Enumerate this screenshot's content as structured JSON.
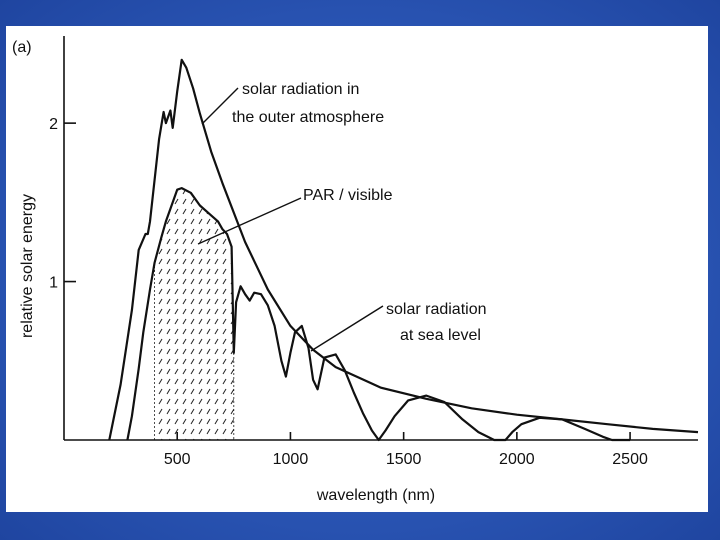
{
  "slide": {
    "background_color": "#2a55b4",
    "panel_color": "#ffffff"
  },
  "chart_data": {
    "type": "line",
    "panel_label": "(a)",
    "xlabel": "wavelength (nm)",
    "ylabel": "relative solar energy",
    "xlim": [
      0,
      2800
    ],
    "ylim": [
      0,
      2.55
    ],
    "x_ticks": [
      500,
      1000,
      1500,
      2000,
      2500
    ],
    "x_tick_labels": [
      "500",
      "1000",
      "1500",
      "2000",
      "2500"
    ],
    "y_ticks": [
      1,
      2
    ],
    "y_tick_labels": [
      "1",
      "2"
    ],
    "grid": false,
    "series": [
      {
        "annotation_lines": [
          "solar radiation in",
          "the outer atmosphere"
        ],
        "x": [
          200,
          250,
          300,
          330,
          360,
          370,
          380,
          420,
          440,
          450,
          470,
          480,
          500,
          520,
          540,
          570,
          600,
          650,
          700,
          800,
          900,
          1000,
          1100,
          1200,
          1400,
          1600,
          1800,
          2000,
          2200,
          2400,
          2600,
          2800
        ],
        "values": [
          0.0,
          0.35,
          0.82,
          1.2,
          1.3,
          1.3,
          1.38,
          1.9,
          2.07,
          2.0,
          2.08,
          1.97,
          2.2,
          2.4,
          2.35,
          2.22,
          2.06,
          1.82,
          1.62,
          1.25,
          0.95,
          0.72,
          0.57,
          0.46,
          0.33,
          0.26,
          0.2,
          0.16,
          0.13,
          0.1,
          0.07,
          0.05
        ]
      },
      {
        "annotation_lines": [
          "solar radiation",
          "at sea level"
        ],
        "x": [
          280,
          300,
          330,
          350,
          380,
          400,
          430,
          450,
          480,
          500,
          520,
          560,
          600,
          640,
          680,
          700,
          720,
          740,
          750,
          760,
          780,
          800,
          820,
          840,
          870,
          900,
          930,
          960,
          980,
          1000,
          1020,
          1050,
          1080,
          1100,
          1120,
          1150,
          1200,
          1240,
          1280,
          1320,
          1360,
          1390,
          1420,
          1460,
          1520,
          1600,
          1680,
          1760,
          1830,
          1900,
          1950,
          1980,
          2020,
          2100,
          2200,
          2300,
          2380,
          2420,
          2500
        ],
        "values": [
          0.0,
          0.15,
          0.45,
          0.68,
          0.95,
          1.12,
          1.28,
          1.38,
          1.5,
          1.58,
          1.59,
          1.56,
          1.48,
          1.43,
          1.38,
          1.33,
          1.3,
          1.22,
          0.55,
          0.87,
          0.97,
          0.92,
          0.88,
          0.93,
          0.92,
          0.85,
          0.72,
          0.5,
          0.4,
          0.55,
          0.68,
          0.72,
          0.58,
          0.38,
          0.32,
          0.52,
          0.54,
          0.44,
          0.3,
          0.17,
          0.06,
          0.0,
          0.06,
          0.15,
          0.25,
          0.28,
          0.24,
          0.13,
          0.05,
          0.0,
          0.0,
          0.05,
          0.1,
          0.14,
          0.13,
          0.07,
          0.02,
          0.0,
          0.0
        ]
      }
    ],
    "shaded_region": {
      "annotation": "PAR / visible",
      "x_range": [
        400,
        750
      ]
    }
  }
}
